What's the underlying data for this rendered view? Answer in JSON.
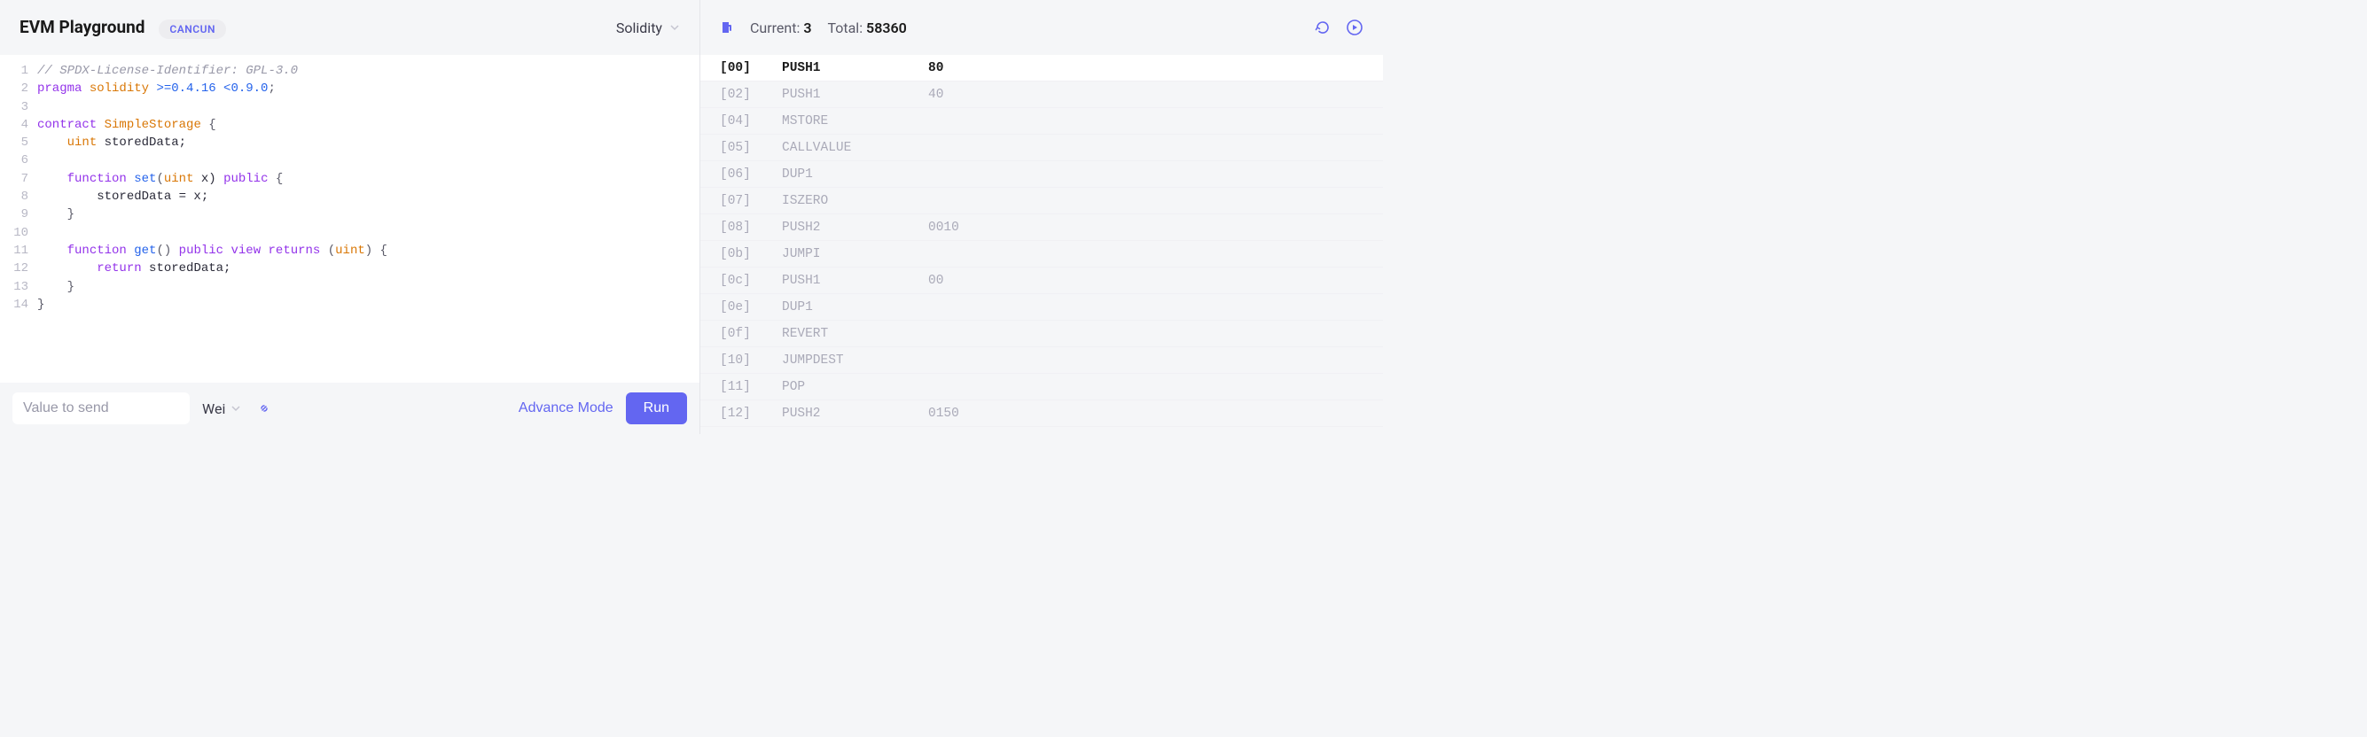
{
  "header": {
    "title": "EVM Playground",
    "badge": "CANCUN",
    "language": "Solidity"
  },
  "gas": {
    "current_label": "Current:",
    "current_value": "3",
    "total_label": "Total:",
    "total_value": "58360"
  },
  "code_lines": [
    [
      {
        "t": "// SPDX-License-Identifier: GPL-3.0",
        "c": "c-comment"
      }
    ],
    [
      {
        "t": "pragma",
        "c": "c-keyword"
      },
      {
        "t": " solidity ",
        "c": "c-type"
      },
      {
        "t": ">=0.4.16 <0.9.0",
        "c": "c-func"
      },
      {
        "t": ";",
        "c": "c-punct"
      }
    ],
    [],
    [
      {
        "t": "contract",
        "c": "c-keyword"
      },
      {
        "t": " ",
        "c": ""
      },
      {
        "t": "SimpleStorage",
        "c": "c-type"
      },
      {
        "t": " {",
        "c": "c-punct"
      }
    ],
    [
      {
        "t": "    ",
        "c": ""
      },
      {
        "t": "uint",
        "c": "c-type"
      },
      {
        "t": " storedData;",
        "c": ""
      }
    ],
    [],
    [
      {
        "t": "    ",
        "c": ""
      },
      {
        "t": "function",
        "c": "c-keyword"
      },
      {
        "t": " ",
        "c": ""
      },
      {
        "t": "set",
        "c": "c-func"
      },
      {
        "t": "(",
        "c": "c-punct"
      },
      {
        "t": "uint",
        "c": "c-type"
      },
      {
        "t": " x) ",
        "c": ""
      },
      {
        "t": "public",
        "c": "c-keyword"
      },
      {
        "t": " {",
        "c": "c-punct"
      }
    ],
    [
      {
        "t": "        storedData = x;",
        "c": ""
      }
    ],
    [
      {
        "t": "    }",
        "c": "c-punct"
      }
    ],
    [],
    [
      {
        "t": "    ",
        "c": ""
      },
      {
        "t": "function",
        "c": "c-keyword"
      },
      {
        "t": " ",
        "c": ""
      },
      {
        "t": "get",
        "c": "c-func"
      },
      {
        "t": "() ",
        "c": "c-punct"
      },
      {
        "t": "public",
        "c": "c-keyword"
      },
      {
        "t": " ",
        "c": ""
      },
      {
        "t": "view",
        "c": "c-keyword"
      },
      {
        "t": " ",
        "c": ""
      },
      {
        "t": "returns",
        "c": "c-keyword"
      },
      {
        "t": " (",
        "c": "c-punct"
      },
      {
        "t": "uint",
        "c": "c-type"
      },
      {
        "t": ") {",
        "c": "c-punct"
      }
    ],
    [
      {
        "t": "        ",
        "c": ""
      },
      {
        "t": "return",
        "c": "c-keyword"
      },
      {
        "t": " storedData;",
        "c": ""
      }
    ],
    [
      {
        "t": "    }",
        "c": "c-punct"
      }
    ],
    [
      {
        "t": "}",
        "c": "c-punct"
      }
    ]
  ],
  "bottom": {
    "value_placeholder": "Value to send",
    "unit": "Wei",
    "advance": "Advance Mode",
    "run": "Run"
  },
  "instructions": [
    {
      "offset": "[00]",
      "op": "PUSH1",
      "arg": "80",
      "current": true
    },
    {
      "offset": "[02]",
      "op": "PUSH1",
      "arg": "40"
    },
    {
      "offset": "[04]",
      "op": "MSTORE",
      "arg": ""
    },
    {
      "offset": "[05]",
      "op": "CALLVALUE",
      "arg": ""
    },
    {
      "offset": "[06]",
      "op": "DUP1",
      "arg": ""
    },
    {
      "offset": "[07]",
      "op": "ISZERO",
      "arg": ""
    },
    {
      "offset": "[08]",
      "op": "PUSH2",
      "arg": "0010"
    },
    {
      "offset": "[0b]",
      "op": "JUMPI",
      "arg": ""
    },
    {
      "offset": "[0c]",
      "op": "PUSH1",
      "arg": "00"
    },
    {
      "offset": "[0e]",
      "op": "DUP1",
      "arg": ""
    },
    {
      "offset": "[0f]",
      "op": "REVERT",
      "arg": ""
    },
    {
      "offset": "[10]",
      "op": "JUMPDEST",
      "arg": ""
    },
    {
      "offset": "[11]",
      "op": "POP",
      "arg": ""
    },
    {
      "offset": "[12]",
      "op": "PUSH2",
      "arg": "0150"
    }
  ],
  "colors": {
    "accent": "#6366f1",
    "bg": "#f5f6f8",
    "text": "#1a1a1a",
    "muted": "#aaaab8"
  }
}
